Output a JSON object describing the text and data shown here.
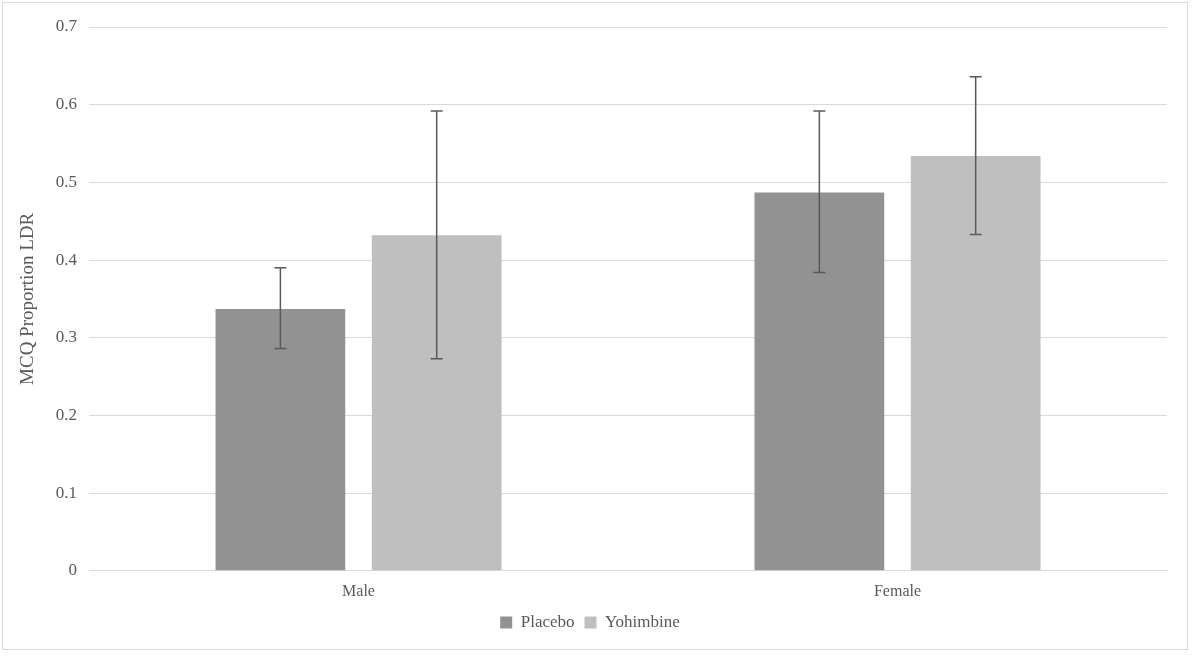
{
  "chart_data": {
    "type": "bar",
    "ylabel": "MCQ Proportion LDR",
    "categories": [
      "Male",
      "Female"
    ],
    "series": [
      {
        "name": "Placebo",
        "color": "#929292",
        "values": [
          0.337,
          0.487
        ],
        "errors": [
          [
            0.286,
            0.39
          ],
          [
            0.384,
            0.592
          ]
        ]
      },
      {
        "name": "Yohimbine",
        "color": "#bfbfbf",
        "values": [
          0.432,
          0.534
        ],
        "errors": [
          [
            0.273,
            0.592
          ],
          [
            0.433,
            0.636
          ]
        ]
      }
    ],
    "ylim": [
      0,
      0.7
    ],
    "yticks": [
      0,
      0.1,
      0.2,
      0.3,
      0.4,
      0.5,
      0.6,
      0.7
    ],
    "grid": "y",
    "legend": "bottom"
  }
}
